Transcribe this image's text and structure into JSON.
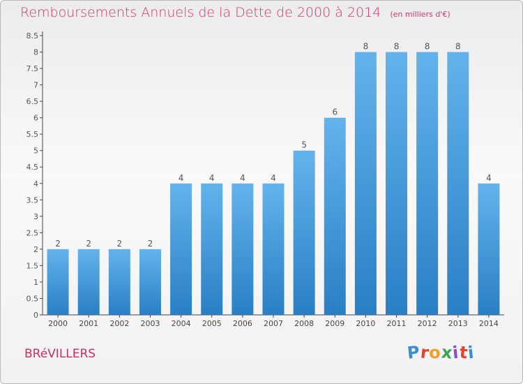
{
  "header": {
    "title": "Remboursements Annuels de la Dette de 2000 à 2014",
    "subtitle": "(en milliers d'€)"
  },
  "footer": {
    "commune": "BRéVILLERS",
    "logo_letters": [
      "P",
      "r",
      "o",
      "x",
      "i",
      "t",
      "i"
    ],
    "logo_colors": [
      "#3a8fd4",
      "#e0442f",
      "#f0a02a",
      "#3aa655",
      "#8a4fc9",
      "#e0442f",
      "#3a8fd4"
    ]
  },
  "chart_data": {
    "type": "bar",
    "title": "Remboursements Annuels de la Dette de 2000 à 2014",
    "subtitle": "(en milliers d'€)",
    "categories": [
      "2000",
      "2001",
      "2002",
      "2003",
      "2004",
      "2005",
      "2006",
      "2007",
      "2008",
      "2009",
      "2010",
      "2011",
      "2012",
      "2013",
      "2014"
    ],
    "values": [
      2,
      2,
      2,
      2,
      4,
      4,
      4,
      4,
      5,
      6,
      8,
      8,
      8,
      8,
      4
    ],
    "data_labels": [
      "2",
      "2",
      "2",
      "2",
      "4",
      "4",
      "4",
      "4",
      "5",
      "6",
      "8",
      "8",
      "8",
      "8",
      "4"
    ],
    "yticks": [
      0,
      0.5,
      1,
      1.5,
      2,
      2.5,
      3,
      3.5,
      4,
      4.5,
      5,
      5.5,
      6,
      6.5,
      7,
      7.5,
      8,
      8.5
    ],
    "ytick_labels": [
      "0",
      "0.5",
      "1",
      "1.5",
      "2",
      "2.5",
      "3",
      "3.5",
      "4",
      "4.5",
      "5",
      "5.5",
      "6",
      "6.5",
      "7",
      "7.5",
      "8",
      "8.5"
    ],
    "ylim": [
      0,
      8.5
    ],
    "xlabel": "",
    "ylabel": "",
    "grid": false,
    "bar_color_top": "#63b3ec",
    "bar_color_bottom": "#2a7fc4"
  }
}
